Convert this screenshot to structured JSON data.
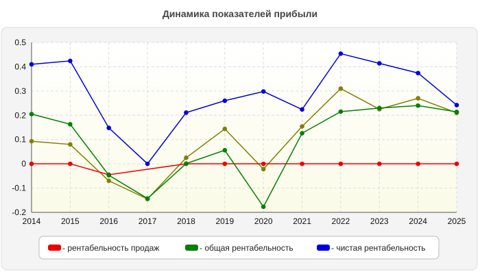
{
  "chart_data": {
    "type": "line",
    "title": "Динамика показателей прибыли",
    "xlabel": "",
    "ylabel": "",
    "x": [
      "2014",
      "2015",
      "2016",
      "2017",
      "2018",
      "2019",
      "2020",
      "2021",
      "2022",
      "2023",
      "2024",
      "2025"
    ],
    "ylim": [
      -0.2,
      0.5
    ],
    "yticks": [
      -0.2,
      -0.1,
      0,
      0.1,
      0.2,
      0.3,
      0.4,
      0.5
    ],
    "ytick_labels": [
      "-0.2",
      "-0.1",
      "0",
      "0.1",
      "0.2",
      "0.3",
      "0.4",
      "0.5"
    ],
    "grid": true,
    "legend_position": "bottom",
    "series": [
      {
        "name": "рентабельность продаж",
        "color": "#ee0000",
        "legend": true,
        "values": [
          0,
          0,
          -0.045,
          null,
          0,
          0,
          0,
          0,
          0,
          0,
          0,
          0
        ]
      },
      {
        "name": "общая рентабельность",
        "color": "#008000",
        "legend": true,
        "values": [
          0.205,
          0.163,
          -0.047,
          -0.143,
          0.001,
          0.056,
          -0.177,
          0.126,
          0.215,
          0.23,
          0.24,
          0.214
        ]
      },
      {
        "name": "чистая рентабельность",
        "color": "#0000dd",
        "legend": true,
        "values": [
          0.41,
          0.424,
          0.148,
          0.0,
          0.211,
          0.26,
          0.298,
          0.224,
          0.454,
          0.414,
          0.374,
          0.242
        ]
      },
      {
        "name": "",
        "color": "#808000",
        "legend": false,
        "values": [
          0.093,
          0.08,
          -0.07,
          -0.145,
          0.025,
          0.144,
          -0.022,
          0.154,
          0.31,
          0.225,
          0.27,
          0.21
        ]
      }
    ]
  }
}
